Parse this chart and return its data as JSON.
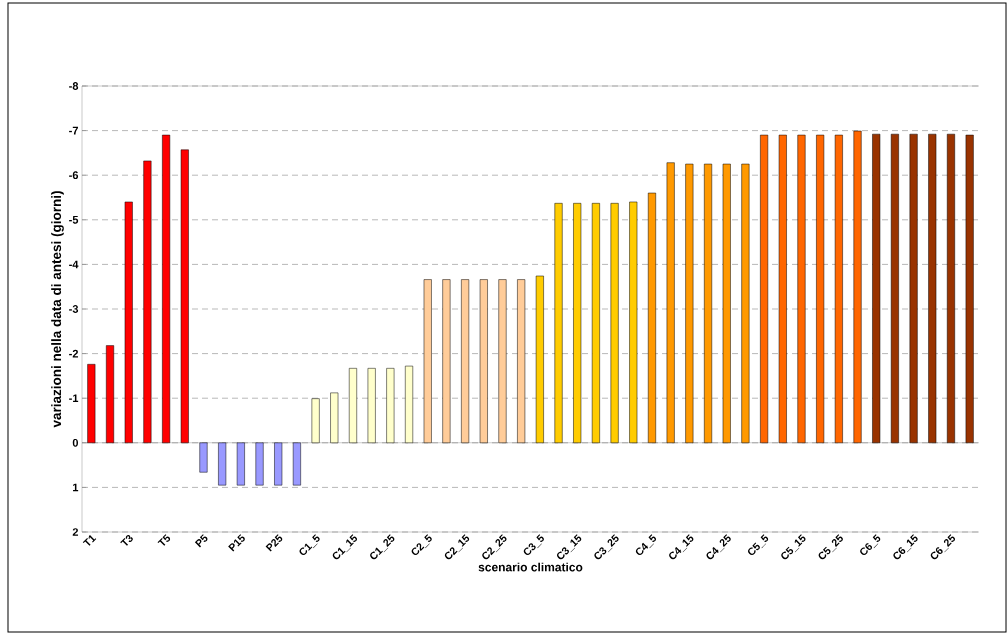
{
  "chart_data": {
    "type": "bar",
    "xlabel": "scenario climatico",
    "ylabel": "variazioni nella data di antesi (giorni)",
    "categories": [
      "T1",
      null,
      "T3",
      null,
      "T5",
      null,
      "P5",
      null,
      "P15",
      null,
      "P25",
      null,
      "C1_5",
      null,
      "C1_15",
      null,
      "C1_25",
      null,
      "C2_5",
      null,
      "C2_15",
      null,
      "C2_25",
      null,
      "C3_5",
      null,
      "C3_15",
      null,
      "C3_25",
      null,
      "C4_5",
      null,
      "C4_15",
      null,
      "C4_25",
      null,
      "C5_5",
      null,
      "C5_15",
      null,
      "C5_25",
      null,
      "C6_5",
      null,
      "C6_15",
      null,
      "C6_25",
      null
    ],
    "values": [
      -1.76,
      -2.18,
      -5.4,
      -6.32,
      -6.9,
      -6.57,
      0.66,
      0.95,
      0.95,
      0.95,
      0.95,
      0.95,
      -0.99,
      -1.12,
      -1.67,
      -1.67,
      -1.67,
      -1.72,
      -3.66,
      -3.66,
      -3.66,
      -3.66,
      -3.66,
      -3.66,
      -3.74,
      -5.37,
      -5.37,
      -5.37,
      -5.37,
      -5.4,
      -5.6,
      -6.28,
      -6.25,
      -6.25,
      -6.25,
      -6.25,
      -6.9,
      -6.9,
      -6.9,
      -6.9,
      -6.9,
      -6.99,
      -6.92,
      -6.92,
      -6.92,
      -6.92,
      -6.92,
      -6.9
    ],
    "colors": [
      "#ff0000",
      "#ff0000",
      "#ff0000",
      "#ff0000",
      "#ff0000",
      "#ff0000",
      "#9999ff",
      "#9999ff",
      "#9999ff",
      "#9999ff",
      "#9999ff",
      "#9999ff",
      "#ffffcc",
      "#ffffcc",
      "#ffffcc",
      "#ffffcc",
      "#ffffcc",
      "#ffffcc",
      "#ffcc99",
      "#ffcc99",
      "#ffcc99",
      "#ffcc99",
      "#ffcc99",
      "#ffcc99",
      "#ffcc00",
      "#ffcc00",
      "#ffcc00",
      "#ffcc00",
      "#ffcc00",
      "#ffcc00",
      "#ff9900",
      "#ff9900",
      "#ff9900",
      "#ff9900",
      "#ff9900",
      "#ff9900",
      "#ff6600",
      "#ff6600",
      "#ff6600",
      "#ff6600",
      "#ff6600",
      "#ff6600",
      "#993300",
      "#993300",
      "#993300",
      "#993300",
      "#993300",
      "#993300"
    ],
    "ylim": [
      2,
      -8
    ],
    "yticks": [
      2,
      1,
      0,
      -1,
      -2,
      -3,
      -4,
      -5,
      -6,
      -7,
      -8
    ],
    "grid": "y"
  }
}
